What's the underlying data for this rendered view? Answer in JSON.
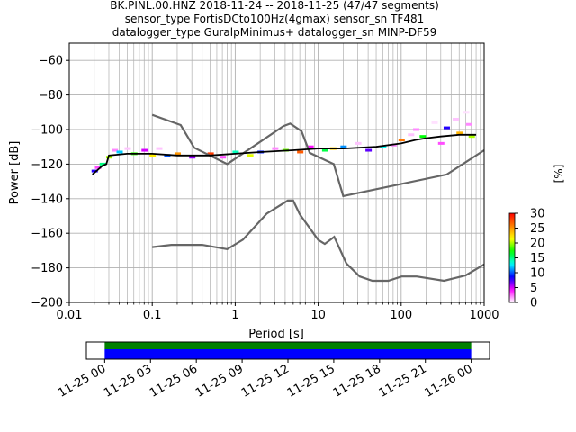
{
  "title": {
    "line1": "BK.PINL.00.HNZ   2018-11-24 -- 2018-11-25  (47/47 segments)",
    "line2": "sensor_type FortisDCto100Hz(4gmax) sensor_sn TF481",
    "line3": "datalogger_type GuralpMinimus+ datalogger_sn MINP-DF59"
  },
  "chart_data": [
    {
      "type": "heatmap",
      "xlabel": "Period [s]",
      "ylabel": "Power [dB]",
      "xscale": "log",
      "xlim": [
        0.01,
        1000
      ],
      "ylim": [
        -200,
        -50
      ],
      "grid": true,
      "x_ticks": [
        {
          "value": 0.01,
          "label": "0.01"
        },
        {
          "value": 0.1,
          "label": "0.1"
        },
        {
          "value": 1,
          "label": "1"
        },
        {
          "value": 10,
          "label": "10"
        },
        {
          "value": 100,
          "label": "100"
        },
        {
          "value": 1000,
          "label": "1000"
        }
      ],
      "y_ticks": [
        {
          "value": -60,
          "label": "−60"
        },
        {
          "value": -80,
          "label": "−80"
        },
        {
          "value": -100,
          "label": "−100"
        },
        {
          "value": -120,
          "label": "−120"
        },
        {
          "value": -140,
          "label": "−140"
        },
        {
          "value": -160,
          "label": "−160"
        },
        {
          "value": -180,
          "label": "−180"
        },
        {
          "value": -200,
          "label": "−200"
        }
      ],
      "mode_curve": {
        "color": "#000000",
        "x": [
          0.019,
          0.025,
          0.028,
          0.03,
          0.05,
          0.1,
          0.2,
          0.5,
          1,
          2,
          5,
          10,
          20,
          50,
          100,
          150,
          200,
          300,
          500,
          800
        ],
        "y": [
          -126,
          -121,
          -120,
          -115,
          -114,
          -114,
          -115,
          -115,
          -114,
          -113,
          -112,
          -111,
          -111,
          -110,
          -108,
          -106,
          -105,
          -104,
          -103,
          -103
        ]
      },
      "heat_cells": [
        {
          "x": 0.02,
          "y": -124,
          "pct": 8
        },
        {
          "x": 0.022,
          "y": -122,
          "pct": 3
        },
        {
          "x": 0.025,
          "y": -120,
          "pct": 15
        },
        {
          "x": 0.03,
          "y": -116,
          "pct": 20
        },
        {
          "x": 0.035,
          "y": -112,
          "pct": 2
        },
        {
          "x": 0.04,
          "y": -113,
          "pct": 12
        },
        {
          "x": 0.05,
          "y": -111,
          "pct": 1
        },
        {
          "x": 0.06,
          "y": -114,
          "pct": 18
        },
        {
          "x": 0.08,
          "y": -112,
          "pct": 5
        },
        {
          "x": 0.1,
          "y": -115,
          "pct": 22
        },
        {
          "x": 0.12,
          "y": -111,
          "pct": 1
        },
        {
          "x": 0.15,
          "y": -115,
          "pct": 10
        },
        {
          "x": 0.2,
          "y": -114,
          "pct": 25
        },
        {
          "x": 0.3,
          "y": -116,
          "pct": 6
        },
        {
          "x": 0.5,
          "y": -114,
          "pct": 28
        },
        {
          "x": 0.7,
          "y": -116,
          "pct": 3
        },
        {
          "x": 1,
          "y": -113,
          "pct": 14
        },
        {
          "x": 1.5,
          "y": -115,
          "pct": 21
        },
        {
          "x": 2,
          "y": -113,
          "pct": 9
        },
        {
          "x": 3,
          "y": -111,
          "pct": 2
        },
        {
          "x": 4,
          "y": -112,
          "pct": 19
        },
        {
          "x": 6,
          "y": -113,
          "pct": 27
        },
        {
          "x": 8,
          "y": -110,
          "pct": 4
        },
        {
          "x": 12,
          "y": -112,
          "pct": 16
        },
        {
          "x": 15,
          "y": -111,
          "pct": 23
        },
        {
          "x": 20,
          "y": -110,
          "pct": 11
        },
        {
          "x": 30,
          "y": -108,
          "pct": 1
        },
        {
          "x": 40,
          "y": -112,
          "pct": 7
        },
        {
          "x": 60,
          "y": -110,
          "pct": 13
        },
        {
          "x": 80,
          "y": -109,
          "pct": 2
        },
        {
          "x": 100,
          "y": -106,
          "pct": 26
        },
        {
          "x": 130,
          "y": -103,
          "pct": 1
        },
        {
          "x": 150,
          "y": -100,
          "pct": 2
        },
        {
          "x": 180,
          "y": -104,
          "pct": 17
        },
        {
          "x": 250,
          "y": -96,
          "pct": 0
        },
        {
          "x": 300,
          "y": -108,
          "pct": 3
        },
        {
          "x": 350,
          "y": -99,
          "pct": 8
        },
        {
          "x": 450,
          "y": -94,
          "pct": 1
        },
        {
          "x": 500,
          "y": -102,
          "pct": 24
        },
        {
          "x": 600,
          "y": -90,
          "pct": 0
        },
        {
          "x": 650,
          "y": -97,
          "pct": 2
        },
        {
          "x": 700,
          "y": -104,
          "pct": 20
        }
      ],
      "noise_models": {
        "color": "#666666",
        "high": {
          "x": [
            0.1,
            0.22,
            0.32,
            0.8,
            3.8,
            4.6,
            6.3,
            7.9,
            15.4,
            20,
            354.8,
            1000
          ],
          "y": [
            -91.5,
            -97.4,
            -110.5,
            -120,
            -98,
            -96.5,
            -101,
            -113.5,
            -120,
            -138.5,
            -126,
            -112
          ]
        },
        "low": {
          "x": [
            0.1,
            0.17,
            0.4,
            0.8,
            1.24,
            2.4,
            4.3,
            5,
            6,
            10,
            12,
            15.6,
            21.9,
            31.6,
            45,
            70,
            101,
            154,
            328,
            600,
            1000
          ],
          "y": [
            -168,
            -166.7,
            -166.7,
            -169.2,
            -163.7,
            -148.6,
            -141.1,
            -141.1,
            -149,
            -163.8,
            -166.2,
            -162.1,
            -177.5,
            -185,
            -187.5,
            -187.5,
            -185,
            -185,
            -187.5,
            -184.4,
            -178
          ]
        }
      },
      "colorbar": {
        "label": "[%]",
        "range": [
          0,
          30
        ],
        "ticks": [
          {
            "value": 0,
            "label": "0"
          },
          {
            "value": 5,
            "label": "5"
          },
          {
            "value": 10,
            "label": "10"
          },
          {
            "value": 15,
            "label": "15"
          },
          {
            "value": 20,
            "label": "20"
          },
          {
            "value": 25,
            "label": "25"
          },
          {
            "value": 30,
            "label": "30"
          }
        ],
        "colors": [
          "#ffffff",
          "#ff00ff",
          "#0000ff",
          "#00ffff",
          "#00ff00",
          "#ffff00",
          "#ff8000",
          "#ff0000"
        ]
      }
    },
    {
      "type": "timeline",
      "x_ticks": [
        {
          "hours": 0,
          "label": "11-25 00"
        },
        {
          "hours": 3,
          "label": "11-25 03"
        },
        {
          "hours": 6,
          "label": "11-25 06"
        },
        {
          "hours": 9,
          "label": "11-25 09"
        },
        {
          "hours": 12,
          "label": "11-25 12"
        },
        {
          "hours": 15,
          "label": "11-25 15"
        },
        {
          "hours": 18,
          "label": "11-25 18"
        },
        {
          "hours": 21,
          "label": "11-25 21"
        },
        {
          "hours": 24,
          "label": "11-26 00"
        }
      ],
      "xlim_hours": [
        -1.2,
        25.2
      ],
      "coverage": [
        {
          "start": 0,
          "end": 24,
          "color": "#008000",
          "track": "top"
        },
        {
          "start": 0,
          "end": 24,
          "color": "#0000ff",
          "track": "bottom"
        }
      ]
    }
  ]
}
